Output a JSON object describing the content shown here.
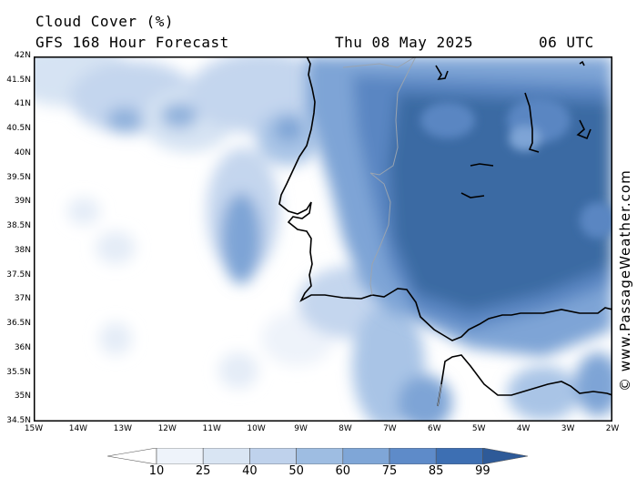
{
  "header": {
    "line1": "Cloud Cover (%)",
    "line2": "GFS 168 Hour Forecast",
    "date": "Thu 08 May 2025",
    "time": "06 UTC"
  },
  "credit": "© www.PassageWeather.com",
  "axes": {
    "lat_labels": [
      "42N",
      "41.5N",
      "41N",
      "40.5N",
      "40N",
      "39.5N",
      "39N",
      "38.5N",
      "38N",
      "37.5N",
      "37N",
      "36.5N",
      "36N",
      "35.5N",
      "35N",
      "34.5N"
    ],
    "lon_labels": [
      "15W",
      "14W",
      "13W",
      "12W",
      "11W",
      "10W",
      "9W",
      "8W",
      "7W",
      "6W",
      "5W",
      "4W",
      "3W",
      "2W"
    ],
    "lat_range": [
      34.5,
      42
    ],
    "lon_range": [
      -15,
      -2
    ]
  },
  "legend": {
    "labels": [
      "10",
      "25",
      "40",
      "50",
      "60",
      "75",
      "85",
      "99"
    ],
    "colors": [
      "#ffffff",
      "#eef3fa",
      "#d9e5f3",
      "#bfd2ec",
      "#9ebde2",
      "#7fa6d7",
      "#5e8bc9",
      "#3d6fb3",
      "#2e5a98"
    ]
  },
  "colors": {
    "land_dark": "#3a6aa3",
    "ocean_mid": "#7fa6d7",
    "coast": "#000000",
    "border": "#9aa4b0"
  }
}
